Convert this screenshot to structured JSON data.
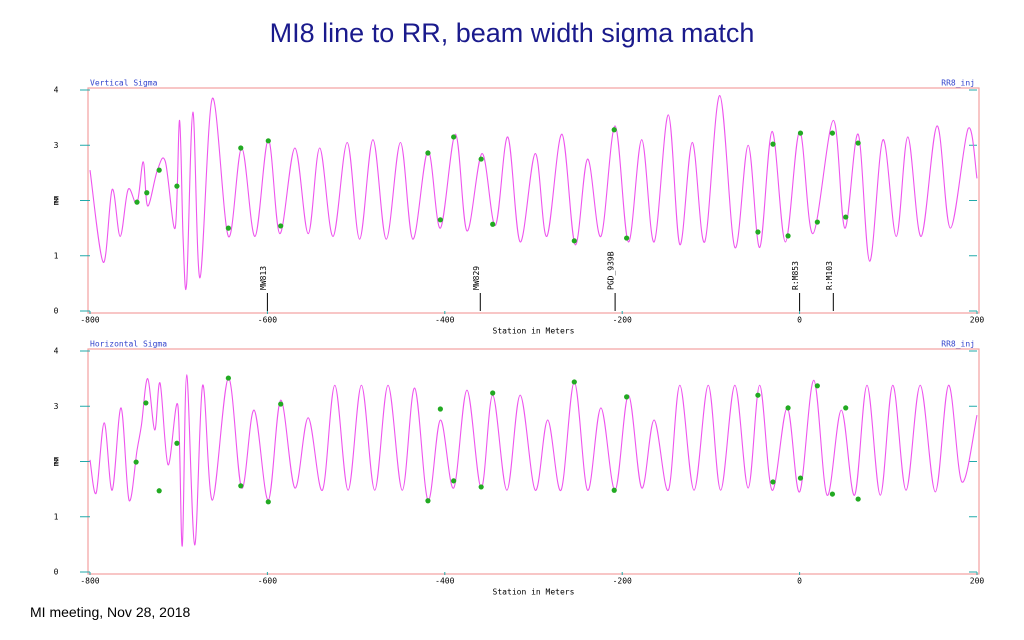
{
  "title": "MI8 line to RR, beam width sigma match",
  "footer": "MI meeting, Nov 28, 2018",
  "chart_data": [
    {
      "type": "line",
      "title": "Vertical Sigma",
      "label": "RR8_inj",
      "xlabel": "Station in Meters",
      "ylabel": "mm",
      "xlim": [
        -800,
        200
      ],
      "xticks": [
        -800,
        -600,
        -400,
        -200,
        0,
        200
      ],
      "ylim": [
        0,
        4
      ],
      "yticks": [
        0,
        1,
        2,
        3,
        4
      ],
      "grid": false,
      "frame_color": "#f4a0a0",
      "tick_color": "#22aaaa",
      "text_color": "#3344cc",
      "series": [
        {
          "style": "curve",
          "color": "#ee55ee",
          "x": [
            -800,
            -785,
            -775,
            -766,
            -757,
            -747,
            -740,
            -735,
            -724,
            -715,
            -704,
            -699,
            -695,
            -691,
            -684,
            -676,
            -662,
            -644,
            -629,
            -614,
            -599,
            -586,
            -569,
            -554,
            -541,
            -526,
            -510,
            -496,
            -481,
            -466,
            -450,
            -436,
            -419,
            -405,
            -388,
            -375,
            -358,
            -343,
            -329,
            -315,
            -298,
            -285,
            -268,
            -253,
            -239,
            -224,
            -208,
            -193,
            -178,
            -164,
            -148,
            -135,
            -121,
            -107,
            -90,
            -73,
            -58,
            -45,
            -31,
            -16,
            0,
            15,
            38,
            51,
            66,
            79,
            94,
            109,
            122,
            137,
            155,
            170,
            190,
            200
          ],
          "values": [
            2.55,
            0.88,
            2.2,
            1.35,
            2.2,
            1.95,
            2.7,
            1.9,
            2.55,
            2.7,
            1.5,
            3.45,
            1.3,
            0.5,
            3.6,
            0.6,
            3.85,
            1.35,
            2.95,
            1.35,
            3.1,
            1.4,
            2.95,
            1.4,
            2.95,
            1.35,
            3.05,
            1.3,
            3.1,
            1.3,
            3.05,
            1.3,
            2.9,
            1.5,
            3.2,
            1.45,
            2.85,
            1.55,
            3.15,
            1.25,
            2.85,
            1.35,
            3.2,
            1.2,
            2.75,
            1.35,
            3.35,
            1.25,
            3.1,
            1.25,
            3.55,
            1.2,
            3.05,
            1.25,
            3.9,
            1.15,
            3.0,
            1.15,
            3.25,
            1.25,
            3.25,
            1.4,
            3.45,
            1.5,
            3.2,
            0.9,
            3.1,
            1.35,
            3.15,
            1.35,
            3.35,
            1.5,
            3.3,
            2.4
          ]
        },
        {
          "style": "points",
          "color": "#22aa22",
          "x": [
            -747,
            -736,
            -722,
            -702,
            -644,
            -630,
            -599,
            -585,
            -419,
            -405,
            -390,
            -359,
            -346,
            -254,
            -209,
            -195,
            -47,
            -30,
            -13,
            1,
            20,
            37,
            52,
            66
          ],
          "values": [
            1.97,
            2.14,
            2.55,
            2.26,
            1.5,
            2.95,
            3.08,
            1.54,
            2.86,
            1.65,
            3.15,
            2.75,
            1.57,
            1.27,
            3.28,
            1.32,
            1.43,
            3.02,
            1.36,
            3.22,
            1.61,
            3.22,
            1.7,
            3.04
          ]
        }
      ],
      "markers": [
        {
          "label": "MW813",
          "x": -600
        },
        {
          "label": "MW829",
          "x": -360
        },
        {
          "label": "PGD_939B",
          "x": -208
        },
        {
          "label": "R:M853",
          "x": 0
        },
        {
          "label": "R:M103",
          "x": 38
        }
      ]
    },
    {
      "type": "line",
      "title": "Horizontal Sigma",
      "label": "RR8_inj",
      "xlabel": "Station in Meters",
      "ylabel": "mm",
      "xlim": [
        -800,
        200
      ],
      "xticks": [
        -800,
        -600,
        -400,
        -200,
        0,
        200
      ],
      "ylim": [
        0,
        4
      ],
      "yticks": [
        0,
        1,
        2,
        3,
        4
      ],
      "grid": false,
      "frame_color": "#f4a0a0",
      "tick_color": "#22aaaa",
      "text_color": "#3344cc",
      "series": [
        {
          "style": "curve",
          "color": "#ee55ee",
          "x": [
            -800,
            -793,
            -784,
            -775,
            -765,
            -756,
            -747,
            -742,
            -735,
            -727,
            -721,
            -712,
            -701,
            -696,
            -691,
            -682,
            -673,
            -662,
            -644,
            -629,
            -615,
            -599,
            -585,
            -569,
            -554,
            -538,
            -524,
            -509,
            -494,
            -479,
            -464,
            -448,
            -434,
            -419,
            -405,
            -390,
            -375,
            -359,
            -346,
            -330,
            -315,
            -298,
            -284,
            -269,
            -254,
            -239,
            -224,
            -208,
            -193,
            -178,
            -164,
            -148,
            -135,
            -119,
            -103,
            -89,
            -73,
            -58,
            -45,
            -31,
            -14,
            0,
            16,
            31,
            47,
            62,
            76,
            91,
            105,
            120,
            136,
            153,
            168,
            183,
            200
          ],
          "values": [
            2.03,
            1.43,
            2.7,
            1.48,
            2.97,
            1.3,
            2.2,
            2.66,
            3.5,
            2.57,
            3.42,
            1.94,
            3.02,
            0.47,
            3.57,
            0.49,
            3.38,
            1.3,
            3.51,
            1.52,
            2.93,
            1.3,
            3.11,
            1.52,
            2.79,
            1.48,
            3.38,
            1.48,
            3.38,
            1.48,
            3.38,
            1.48,
            3.33,
            1.3,
            2.75,
            1.52,
            3.29,
            1.52,
            3.2,
            1.48,
            3.2,
            1.48,
            2.75,
            1.48,
            3.44,
            1.48,
            2.97,
            1.48,
            3.2,
            1.52,
            2.75,
            1.48,
            3.38,
            1.48,
            3.38,
            1.48,
            3.38,
            1.52,
            3.38,
            1.48,
            2.97,
            1.45,
            3.47,
            1.39,
            2.93,
            1.39,
            3.38,
            1.39,
            3.38,
            1.48,
            3.38,
            1.45,
            3.38,
            1.63,
            2.84
          ]
        },
        {
          "style": "points",
          "color": "#22aa22",
          "x": [
            -748,
            -737,
            -722,
            -702,
            -644,
            -630,
            -599,
            -585,
            -419,
            -405,
            -390,
            -359,
            -346,
            -254,
            -209,
            -195,
            -47,
            -30,
            -13,
            1,
            20,
            37,
            52,
            66
          ],
          "values": [
            1.99,
            3.06,
            1.47,
            2.33,
            3.51,
            1.56,
            1.27,
            3.04,
            1.29,
            2.95,
            1.65,
            1.54,
            3.24,
            3.44,
            1.48,
            3.17,
            3.2,
            1.63,
            2.97,
            1.7,
            3.37,
            1.41,
            2.97,
            1.32
          ]
        }
      ]
    }
  ]
}
